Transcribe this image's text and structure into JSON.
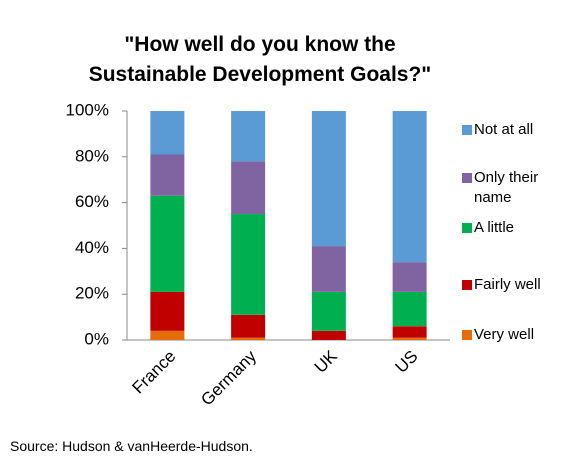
{
  "chart_data": {
    "type": "stacked-bar",
    "title": "\"How well do you know the\nSustainable Development Goals?\"",
    "source": "Source:  Hudson & vanHeerde-Hudson.",
    "categories": [
      "France",
      "Germany",
      "UK",
      "US"
    ],
    "series": [
      {
        "name": "Very well",
        "color": "#e46c0a",
        "values": [
          4,
          1,
          0,
          1
        ]
      },
      {
        "name": "Fairly well",
        "color": "#c00000",
        "values": [
          17,
          10,
          4,
          5
        ]
      },
      {
        "name": "A little",
        "color": "#00b050",
        "values": [
          42,
          44,
          17,
          15
        ]
      },
      {
        "name": "Only their name",
        "color": "#8064a2",
        "values": [
          18,
          23,
          20,
          13
        ]
      },
      {
        "name": "Not at all",
        "color": "#5b9bd5",
        "values": [
          19,
          22,
          59,
          66
        ]
      }
    ],
    "ylim": [
      0,
      100
    ],
    "yticks": [
      {
        "value": 0,
        "label": "0%"
      },
      {
        "value": 20,
        "label": "20%"
      },
      {
        "value": 40,
        "label": "40%"
      },
      {
        "value": 60,
        "label": "60%"
      },
      {
        "value": 80,
        "label": "80%"
      },
      {
        "value": 100,
        "label": "100%"
      }
    ],
    "legend": "right"
  }
}
